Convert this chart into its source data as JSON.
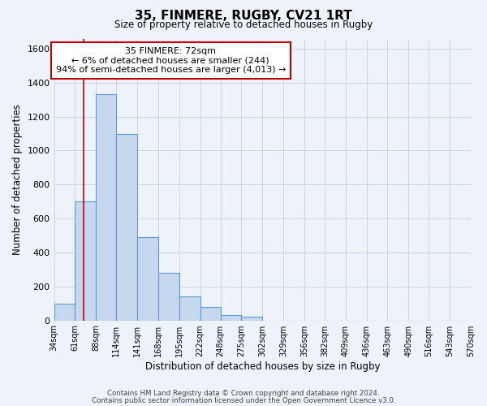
{
  "title": "35, FINMERE, RUGBY, CV21 1RT",
  "subtitle": "Size of property relative to detached houses in Rugby",
  "xlabel": "Distribution of detached houses by size in Rugby",
  "ylabel": "Number of detached properties",
  "bin_labels": [
    "34sqm",
    "61sqm",
    "88sqm",
    "114sqm",
    "141sqm",
    "168sqm",
    "195sqm",
    "222sqm",
    "248sqm",
    "275sqm",
    "302sqm",
    "329sqm",
    "356sqm",
    "382sqm",
    "409sqm",
    "436sqm",
    "463sqm",
    "490sqm",
    "516sqm",
    "543sqm",
    "570sqm"
  ],
  "bar_values": [
    100,
    700,
    1330,
    1100,
    490,
    280,
    140,
    80,
    30,
    20,
    0,
    0,
    0,
    0,
    0,
    0,
    0,
    0,
    0,
    0
  ],
  "bin_edges": [
    34,
    61,
    88,
    114,
    141,
    168,
    195,
    222,
    248,
    275,
    302,
    329,
    356,
    382,
    409,
    436,
    463,
    490,
    516,
    543,
    570
  ],
  "bar_color": "#c5d8ee",
  "bar_edge_color": "#5b9bd5",
  "vline_x": 72,
  "vline_color": "#c00000",
  "annotation_title": "35 FINMERE: 72sqm",
  "annotation_line1": "← 6% of detached houses are smaller (244)",
  "annotation_line2": "94% of semi-detached houses are larger (4,013) →",
  "annotation_box_color": "#ffffff",
  "annotation_box_edge_color": "#c00000",
  "ylim": [
    0,
    1660
  ],
  "yticks": [
    0,
    200,
    400,
    600,
    800,
    1000,
    1200,
    1400,
    1600
  ],
  "footer1": "Contains HM Land Registry data © Crown copyright and database right 2024.",
  "footer2": "Contains public sector information licensed under the Open Government Licence v3.0.",
  "bg_color": "#eef2f9",
  "grid_color": "#c8d4e8"
}
